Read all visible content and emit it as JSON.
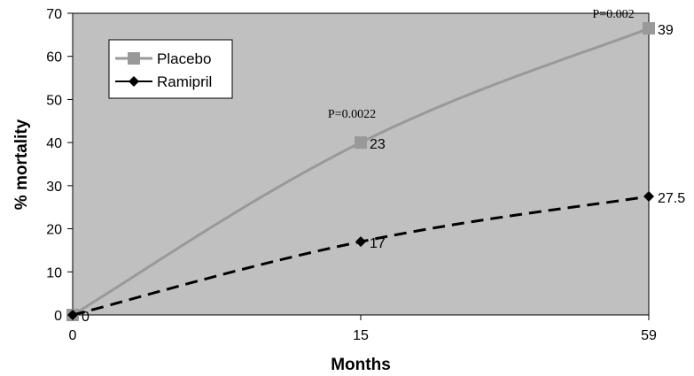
{
  "chart_data": {
    "type": "line",
    "title": "",
    "xlabel": "Months",
    "ylabel": "% mortality",
    "categories": [
      "0",
      "15",
      "59"
    ],
    "ylim": [
      0,
      70
    ],
    "yticks": [
      0,
      10,
      20,
      30,
      40,
      50,
      60,
      70
    ],
    "grid": false,
    "legend": "top-left",
    "series": [
      {
        "name": "Placebo",
        "values": [
          0,
          40,
          66.5
        ],
        "point_labels": [
          "",
          "23",
          "39"
        ],
        "color": "#999999",
        "line_style": "solid",
        "marker": "square"
      },
      {
        "name": "Ramipril",
        "values": [
          0,
          17,
          27.5
        ],
        "point_labels": [
          "0",
          "17",
          "27.5"
        ],
        "color": "#000000",
        "line_style": "dashed",
        "marker": "diamond"
      }
    ],
    "annotations": [
      {
        "text": "P=0.0022",
        "category": "15"
      },
      {
        "text": "P=0.002",
        "category": "59"
      }
    ],
    "plot_background": "#c0c0c0"
  }
}
